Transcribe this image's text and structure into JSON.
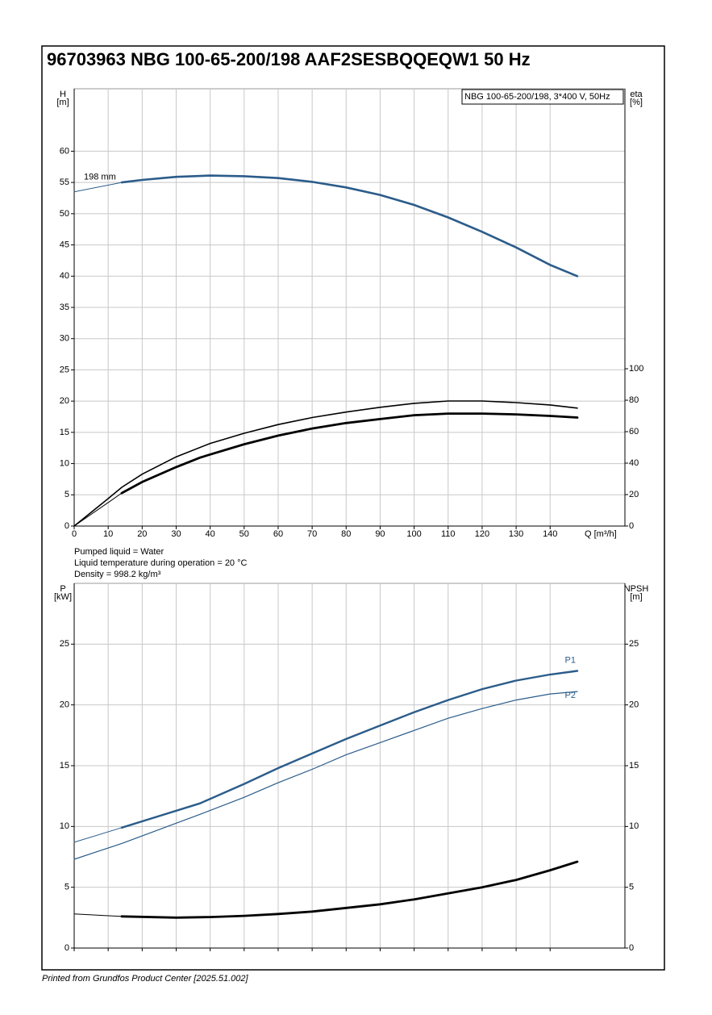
{
  "title": "96703963 NBG 100-65-200/198 AAF2SESBQQEQW1 50 Hz",
  "notes": [
    "Pumped liquid = Water",
    "Liquid temperature during operation = 20 °C",
    "Density = 998.2 kg/m³"
  ],
  "footer": "Printed from Grundfos Product Center [2025.51.002]",
  "chart_data": [
    {
      "type": "line",
      "legend_text": "NBG 100-65-200/198, 3*400 V, 50Hz",
      "annotation": "198 mm",
      "ylabel": "H",
      "yunit": "[m]",
      "y2label": "eta",
      "y2unit": "[%]",
      "xlabel": "Q [m³/h]",
      "xlim": [
        0,
        162
      ],
      "xticks": [
        0,
        10,
        20,
        30,
        40,
        50,
        60,
        70,
        80,
        90,
        100,
        110,
        120,
        130,
        140
      ],
      "xtick_labels": true,
      "ylim": [
        0,
        70
      ],
      "yticks": [
        0,
        5,
        10,
        15,
        20,
        25,
        30,
        35,
        40,
        45,
        50,
        55,
        60
      ],
      "y2lim": [
        0,
        278
      ],
      "y2ticks": [
        0,
        20,
        40,
        60,
        80,
        100
      ],
      "grid": true,
      "series": [
        {
          "color": "#2b5c8a",
          "width": 1,
          "x": [
            0,
            14
          ],
          "values": [
            53.5,
            55.0
          ]
        },
        {
          "color": "#2b5c8a",
          "width": 2.6,
          "x": [
            14,
            20,
            30,
            40,
            50,
            60,
            70,
            80,
            90,
            100,
            110,
            120,
            130,
            140,
            148
          ],
          "values": [
            55.0,
            55.4,
            55.9,
            56.1,
            56.0,
            55.7,
            55.1,
            54.2,
            53.0,
            51.4,
            49.4,
            47.1,
            44.6,
            41.8,
            40.0
          ]
        },
        {
          "color": "#000000",
          "width": 1.6,
          "axis": "y2",
          "x": [
            0,
            10,
            14,
            20,
            30,
            40,
            50,
            60,
            70,
            80,
            90,
            100,
            110,
            120,
            130,
            140,
            148
          ],
          "values": [
            0,
            17.5,
            24.6,
            33,
            44,
            52.5,
            59,
            64.5,
            69,
            72.5,
            75.5,
            78,
            79.5,
            79.5,
            78.5,
            77,
            75
          ]
        },
        {
          "color": "#000000",
          "width": 1,
          "axis": "y2",
          "x": [
            0,
            10,
            14
          ],
          "values": [
            0,
            15,
            21
          ]
        },
        {
          "color": "#000000",
          "width": 2.8,
          "axis": "y2",
          "x": [
            14,
            20,
            30,
            37,
            40,
            50,
            60,
            70,
            80,
            90,
            100,
            110,
            120,
            130,
            140,
            148
          ],
          "values": [
            21,
            28,
            37.5,
            43.5,
            45.5,
            52,
            57.5,
            62,
            65.5,
            68,
            70.5,
            71.5,
            71.5,
            71,
            70,
            69
          ]
        }
      ]
    },
    {
      "type": "line",
      "ylabel": "P",
      "yunit": "[kW]",
      "y2label": "NPSH",
      "y2unit": "[m]",
      "xlim": [
        0,
        162
      ],
      "xticks": [
        0,
        10,
        20,
        30,
        40,
        50,
        60,
        70,
        80,
        90,
        100,
        110,
        120,
        130,
        140
      ],
      "xtick_labels": false,
      "ylim": [
        0,
        30
      ],
      "yticks": [
        0,
        5,
        10,
        15,
        20,
        25
      ],
      "y2lim": [
        0,
        30
      ],
      "y2ticks": [
        0,
        5,
        10,
        15,
        20,
        25
      ],
      "grid": true,
      "series": [
        {
          "color": "#2b5c8a",
          "width": 1,
          "x": [
            0,
            14
          ],
          "values": [
            8.7,
            9.9
          ]
        },
        {
          "color": "#2b5c8a",
          "width": 2.4,
          "label": "P1",
          "x": [
            14,
            37,
            50,
            60,
            70,
            80,
            90,
            100,
            110,
            120,
            130,
            140,
            148
          ],
          "values": [
            9.9,
            11.9,
            13.5,
            14.8,
            16.0,
            17.2,
            18.3,
            19.4,
            20.4,
            21.3,
            22.0,
            22.5,
            22.8
          ]
        },
        {
          "color": "#2b5c8a",
          "width": 1.2,
          "label": "P2",
          "x": [
            0,
            14,
            37,
            50,
            60,
            70,
            80,
            90,
            100,
            110,
            120,
            130,
            140,
            148
          ],
          "values": [
            7.3,
            8.6,
            11.0,
            12.4,
            13.6,
            14.7,
            15.9,
            16.9,
            17.9,
            18.9,
            19.7,
            20.4,
            20.9,
            21.1
          ]
        },
        {
          "color": "#000000",
          "width": 1,
          "axis": "y2",
          "x": [
            0,
            14
          ],
          "values": [
            2.8,
            2.6
          ]
        },
        {
          "color": "#000000",
          "width": 2.8,
          "axis": "y2",
          "x": [
            14,
            30,
            40,
            50,
            60,
            70,
            80,
            90,
            100,
            110,
            120,
            130,
            140,
            148
          ],
          "values": [
            2.6,
            2.5,
            2.55,
            2.65,
            2.8,
            3.0,
            3.3,
            3.6,
            4.0,
            4.5,
            5.0,
            5.6,
            6.4,
            7.1
          ]
        }
      ]
    }
  ]
}
